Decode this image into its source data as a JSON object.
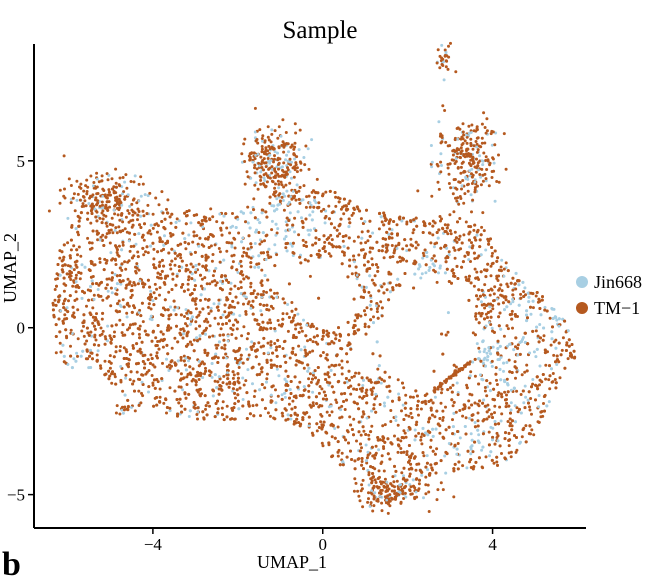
{
  "panel_label": "b",
  "chart_data": {
    "type": "scatter",
    "title": "Sample",
    "xlabel": "UMAP_1",
    "ylabel": "UMAP_2",
    "xlim": [
      -6.8,
      6.2
    ],
    "ylim": [
      -6.0,
      8.5
    ],
    "xticks": [
      -4,
      0,
      4
    ],
    "yticks": [
      -5,
      0,
      5
    ],
    "xtick_labels": [
      "−4",
      "0",
      "4"
    ],
    "ytick_labels": [
      "−5",
      "0",
      "5"
    ],
    "grid": false,
    "legend_position": "right",
    "series": [
      {
        "name": "Jin668",
        "color": "#a8cfe3"
      },
      {
        "name": "TM−1",
        "color": "#b5591f"
      }
    ]
  }
}
